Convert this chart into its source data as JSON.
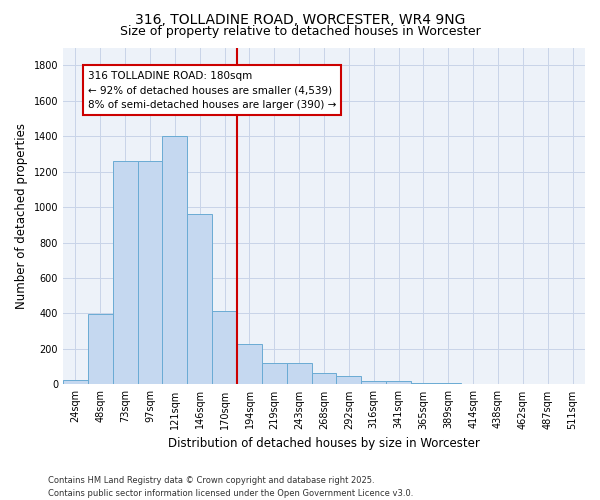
{
  "title": "316, TOLLADINE ROAD, WORCESTER, WR4 9NG",
  "subtitle": "Size of property relative to detached houses in Worcester",
  "xlabel": "Distribution of detached houses by size in Worcester",
  "ylabel": "Number of detached properties",
  "categories": [
    "24sqm",
    "48sqm",
    "73sqm",
    "97sqm",
    "121sqm",
    "146sqm",
    "170sqm",
    "194sqm",
    "219sqm",
    "243sqm",
    "268sqm",
    "292sqm",
    "316sqm",
    "341sqm",
    "365sqm",
    "389sqm",
    "414sqm",
    "438sqm",
    "462sqm",
    "487sqm",
    "511sqm"
  ],
  "values": [
    25,
    395,
    1260,
    1260,
    1400,
    960,
    415,
    230,
    120,
    120,
    65,
    45,
    20,
    20,
    10,
    10,
    5,
    5,
    2,
    2,
    1
  ],
  "bar_color": "#c5d8f0",
  "bar_edge_color": "#6aabd4",
  "grid_color": "#c8d4e8",
  "background_color": "#edf2f9",
  "annotation_text": "316 TOLLADINE ROAD: 180sqm\n← 92% of detached houses are smaller (4,539)\n8% of semi-detached houses are larger (390) →",
  "annotation_box_color": "#cc0000",
  "vline_color": "#cc0000",
  "ylim": [
    0,
    1900
  ],
  "yticks": [
    0,
    200,
    400,
    600,
    800,
    1000,
    1200,
    1400,
    1600,
    1800
  ],
  "footer": "Contains HM Land Registry data © Crown copyright and database right 2025.\nContains public sector information licensed under the Open Government Licence v3.0.",
  "title_fontsize": 10,
  "subtitle_fontsize": 9,
  "axis_label_fontsize": 8.5,
  "tick_fontsize": 7,
  "annotation_fontsize": 7.5,
  "footer_fontsize": 6
}
